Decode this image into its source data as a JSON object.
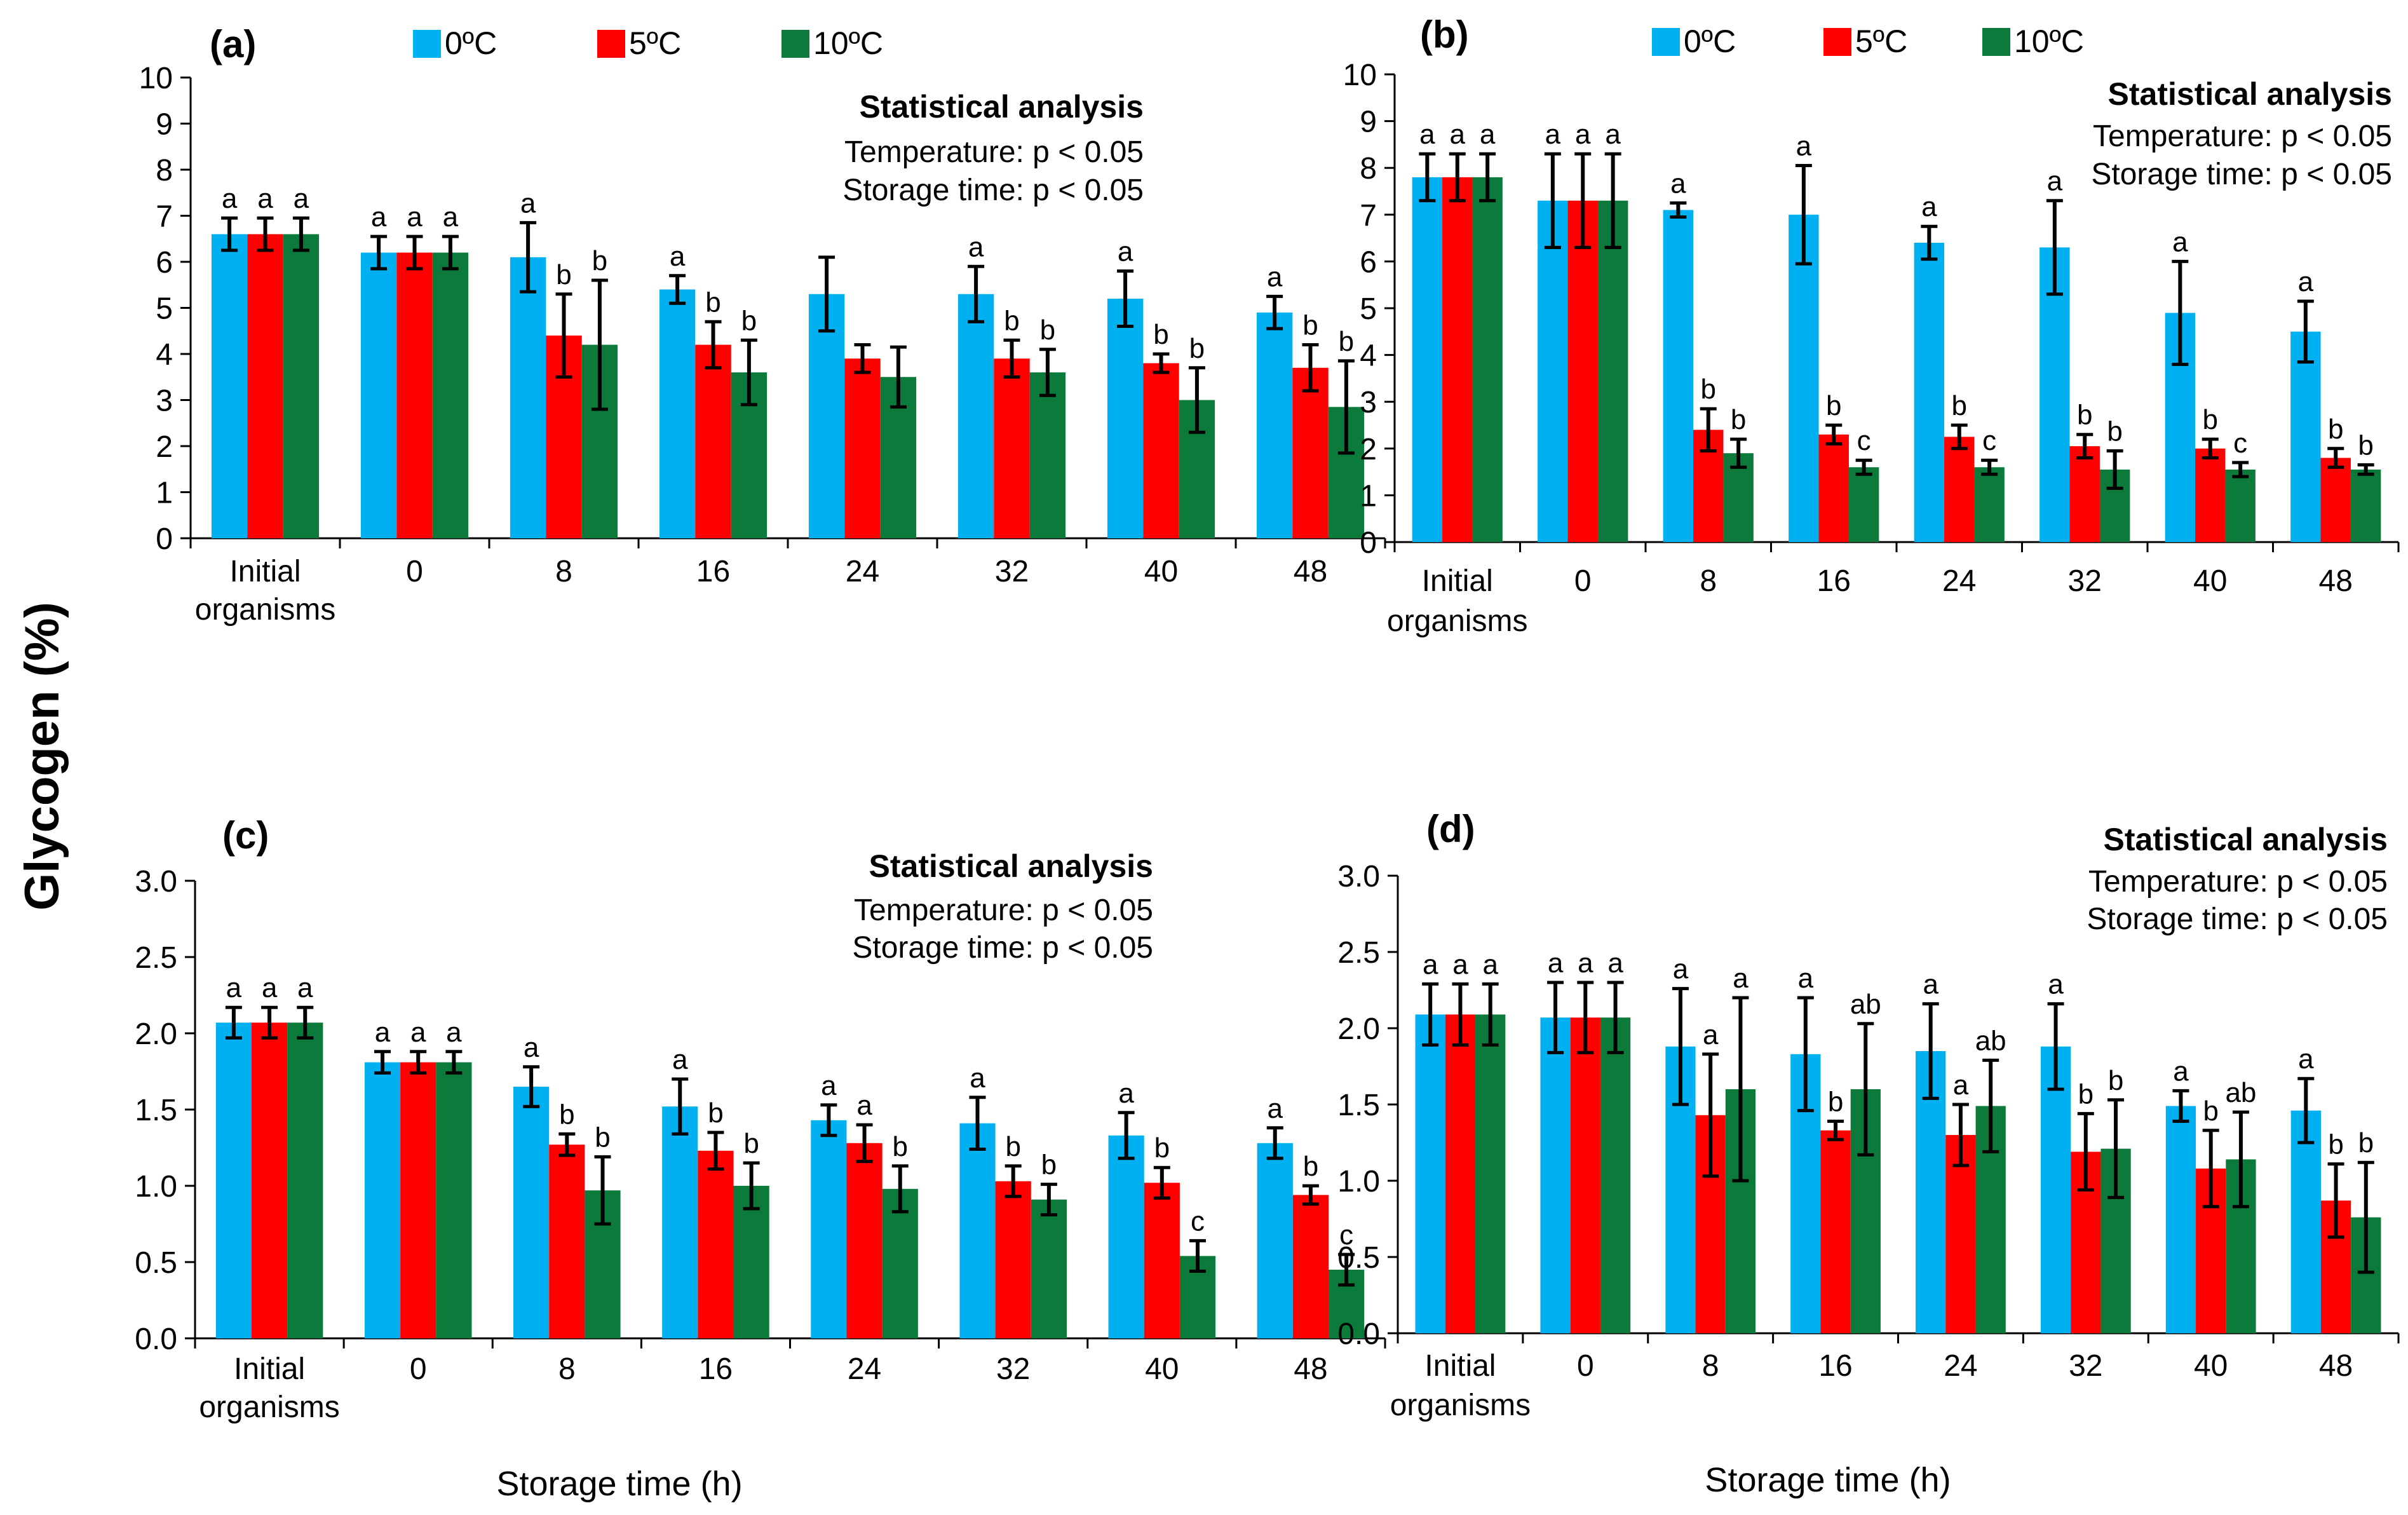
{
  "figure": {
    "y_axis_title": "Glycogen (%)",
    "x_axis_title": "Storage time (h)"
  },
  "colors": {
    "0ºC": "#00B0F0",
    "5ºC": "#FF0000",
    "10ºC": "#0B7A3A"
  },
  "chart_data": [
    {
      "panel": "(a)",
      "type": "bar",
      "categories": [
        "Initial organisms",
        "0",
        "8",
        "16",
        "24",
        "32",
        "40",
        "48"
      ],
      "ylim": [
        0,
        10
      ],
      "yticks": [
        "0",
        "1",
        "2",
        "3",
        "4",
        "5",
        "6",
        "7",
        "8",
        "9",
        "10"
      ],
      "legend": [
        "0ºC",
        "5ºC",
        "10ºC"
      ],
      "stats": {
        "title": "Statistical analysis",
        "lines": [
          "Temperature: p < 0.05",
          "Storage time: p < 0.05"
        ]
      },
      "series": [
        {
          "name": "0ºC",
          "values": [
            6.6,
            6.2,
            6.1,
            5.4,
            5.3,
            5.3,
            5.2,
            4.9
          ],
          "errors": [
            0.35,
            0.35,
            0.75,
            0.3,
            0.8,
            0.6,
            0.6,
            0.35
          ],
          "letters": [
            "a",
            "a",
            "a",
            "a",
            "",
            "a",
            "a",
            "a"
          ]
        },
        {
          "name": "5ºC",
          "values": [
            6.6,
            6.2,
            4.4,
            4.2,
            3.9,
            3.9,
            3.8,
            3.7
          ],
          "errors": [
            0.35,
            0.35,
            0.9,
            0.5,
            0.3,
            0.4,
            0.2,
            0.5
          ],
          "letters": [
            "a",
            "a",
            "b",
            "b",
            "",
            "b",
            "b",
            "b"
          ]
        },
        {
          "name": "10ºC",
          "values": [
            6.6,
            6.2,
            4.2,
            3.6,
            3.5,
            3.6,
            3.0,
            2.85
          ],
          "errors": [
            0.35,
            0.35,
            1.4,
            0.7,
            0.65,
            0.5,
            0.7,
            1.0
          ],
          "letters": [
            "a",
            "a",
            "b",
            "b",
            "",
            "b",
            "b",
            "b"
          ]
        }
      ]
    },
    {
      "panel": "(b)",
      "type": "bar",
      "categories": [
        "Initial organisms",
        "0",
        "8",
        "16",
        "24",
        "32",
        "40",
        "48"
      ],
      "ylim": [
        0,
        10
      ],
      "yticks": [
        "0",
        "1",
        "2",
        "3",
        "4",
        "5",
        "6",
        "7",
        "8",
        "9",
        "10"
      ],
      "legend": [
        "0ºC",
        "5ºC",
        "10ºC"
      ],
      "stats": {
        "title": "Statistical analysis",
        "lines": [
          "Temperature: p < 0.05",
          "Storage time: p < 0.05"
        ]
      },
      "series": [
        {
          "name": "0ºC",
          "values": [
            7.8,
            7.3,
            7.1,
            7.0,
            6.4,
            6.3,
            4.9,
            4.5
          ],
          "errors": [
            0.5,
            1.0,
            0.15,
            1.05,
            0.35,
            1.0,
            1.1,
            0.65
          ],
          "letters": [
            "a",
            "a",
            "a",
            "a",
            "a",
            "a",
            "a",
            "a"
          ]
        },
        {
          "name": "5ºC",
          "values": [
            7.8,
            7.3,
            2.4,
            2.3,
            2.25,
            2.05,
            2.0,
            1.8
          ],
          "errors": [
            0.5,
            1.0,
            0.45,
            0.2,
            0.25,
            0.25,
            0.2,
            0.2
          ],
          "letters": [
            "a",
            "a",
            "b",
            "b",
            "b",
            "b",
            "b",
            "b"
          ]
        },
        {
          "name": "10ºC",
          "values": [
            7.8,
            7.3,
            1.9,
            1.6,
            1.6,
            1.55,
            1.55,
            1.55
          ],
          "errors": [
            0.5,
            1.0,
            0.3,
            0.15,
            0.15,
            0.4,
            0.15,
            0.1
          ],
          "letters": [
            "a",
            "a",
            "b",
            "c",
            "c",
            "b",
            "c",
            "b"
          ]
        }
      ]
    },
    {
      "panel": "(c)",
      "type": "bar",
      "categories": [
        "Initial organisms",
        "0",
        "8",
        "16",
        "24",
        "32",
        "40",
        "48"
      ],
      "ylim": [
        0,
        3
      ],
      "yticks": [
        "0.0",
        "0.5",
        "1.0",
        "1.5",
        "2.0",
        "2.5",
        "3.0"
      ],
      "legend": [],
      "stats": {
        "title": "Statistical analysis",
        "lines": [
          "Temperature: p < 0.05",
          "Storage time: p < 0.05"
        ]
      },
      "series": [
        {
          "name": "0ºC",
          "values": [
            2.07,
            1.81,
            1.65,
            1.52,
            1.43,
            1.41,
            1.33,
            1.28
          ],
          "errors": [
            0.1,
            0.07,
            0.13,
            0.18,
            0.1,
            0.17,
            0.15,
            0.1
          ],
          "letters": [
            "a",
            "a",
            "a",
            "a",
            "a",
            "a",
            "a",
            "a"
          ]
        },
        {
          "name": "5ºC",
          "values": [
            2.07,
            1.81,
            1.27,
            1.23,
            1.28,
            1.03,
            1.02,
            0.94
          ],
          "errors": [
            0.1,
            0.07,
            0.07,
            0.12,
            0.12,
            0.1,
            0.1,
            0.06
          ],
          "letters": [
            "a",
            "a",
            "b",
            "b",
            "a",
            "b",
            "b",
            "b"
          ]
        },
        {
          "name": "10ºC",
          "values": [
            2.07,
            1.81,
            0.97,
            1.0,
            0.98,
            0.91,
            0.54,
            0.45
          ],
          "errors": [
            0.1,
            0.07,
            0.22,
            0.15,
            0.15,
            0.1,
            0.1,
            0.1
          ],
          "letters": [
            "a",
            "a",
            "b",
            "b",
            "b",
            "b",
            "c",
            "c"
          ]
        }
      ]
    },
    {
      "panel": "(d)",
      "type": "bar",
      "categories": [
        "Initial organisms",
        "0",
        "8",
        "16",
        "24",
        "32",
        "40",
        "48"
      ],
      "ylim": [
        0,
        3
      ],
      "yticks": [
        "0.0",
        "0.5",
        "1.0",
        "1.5",
        "2.0",
        "2.5",
        "3.0"
      ],
      "legend": [],
      "stats": {
        "title": "Statistical analysis",
        "lines": [
          "Temperature: p < 0.05",
          "Storage time: p < 0.05"
        ]
      },
      "series": [
        {
          "name": "0ºC",
          "values": [
            2.09,
            2.07,
            1.88,
            1.83,
            1.85,
            1.88,
            1.49,
            1.46
          ],
          "errors": [
            0.2,
            0.23,
            0.38,
            0.37,
            0.31,
            0.28,
            0.1,
            0.21
          ],
          "letters": [
            "a",
            "a",
            "a",
            "a",
            "a",
            "a",
            "a",
            "a"
          ]
        },
        {
          "name": "5ºC",
          "values": [
            2.09,
            2.07,
            1.43,
            1.33,
            1.3,
            1.19,
            1.08,
            0.87
          ],
          "errors": [
            0.2,
            0.23,
            0.4,
            0.06,
            0.2,
            0.25,
            0.25,
            0.24
          ],
          "letters": [
            "a",
            "a",
            "a",
            "b",
            "a",
            "b",
            "b",
            "b"
          ]
        },
        {
          "name": "10ºC",
          "values": [
            2.09,
            2.07,
            1.6,
            1.6,
            1.49,
            1.21,
            1.14,
            0.76
          ],
          "errors": [
            0.2,
            0.23,
            0.6,
            0.43,
            0.3,
            0.32,
            0.31,
            0.36
          ],
          "letters": [
            "a",
            "a",
            "a",
            "ab",
            "ab",
            "b",
            "ab",
            "b"
          ]
        }
      ]
    }
  ]
}
